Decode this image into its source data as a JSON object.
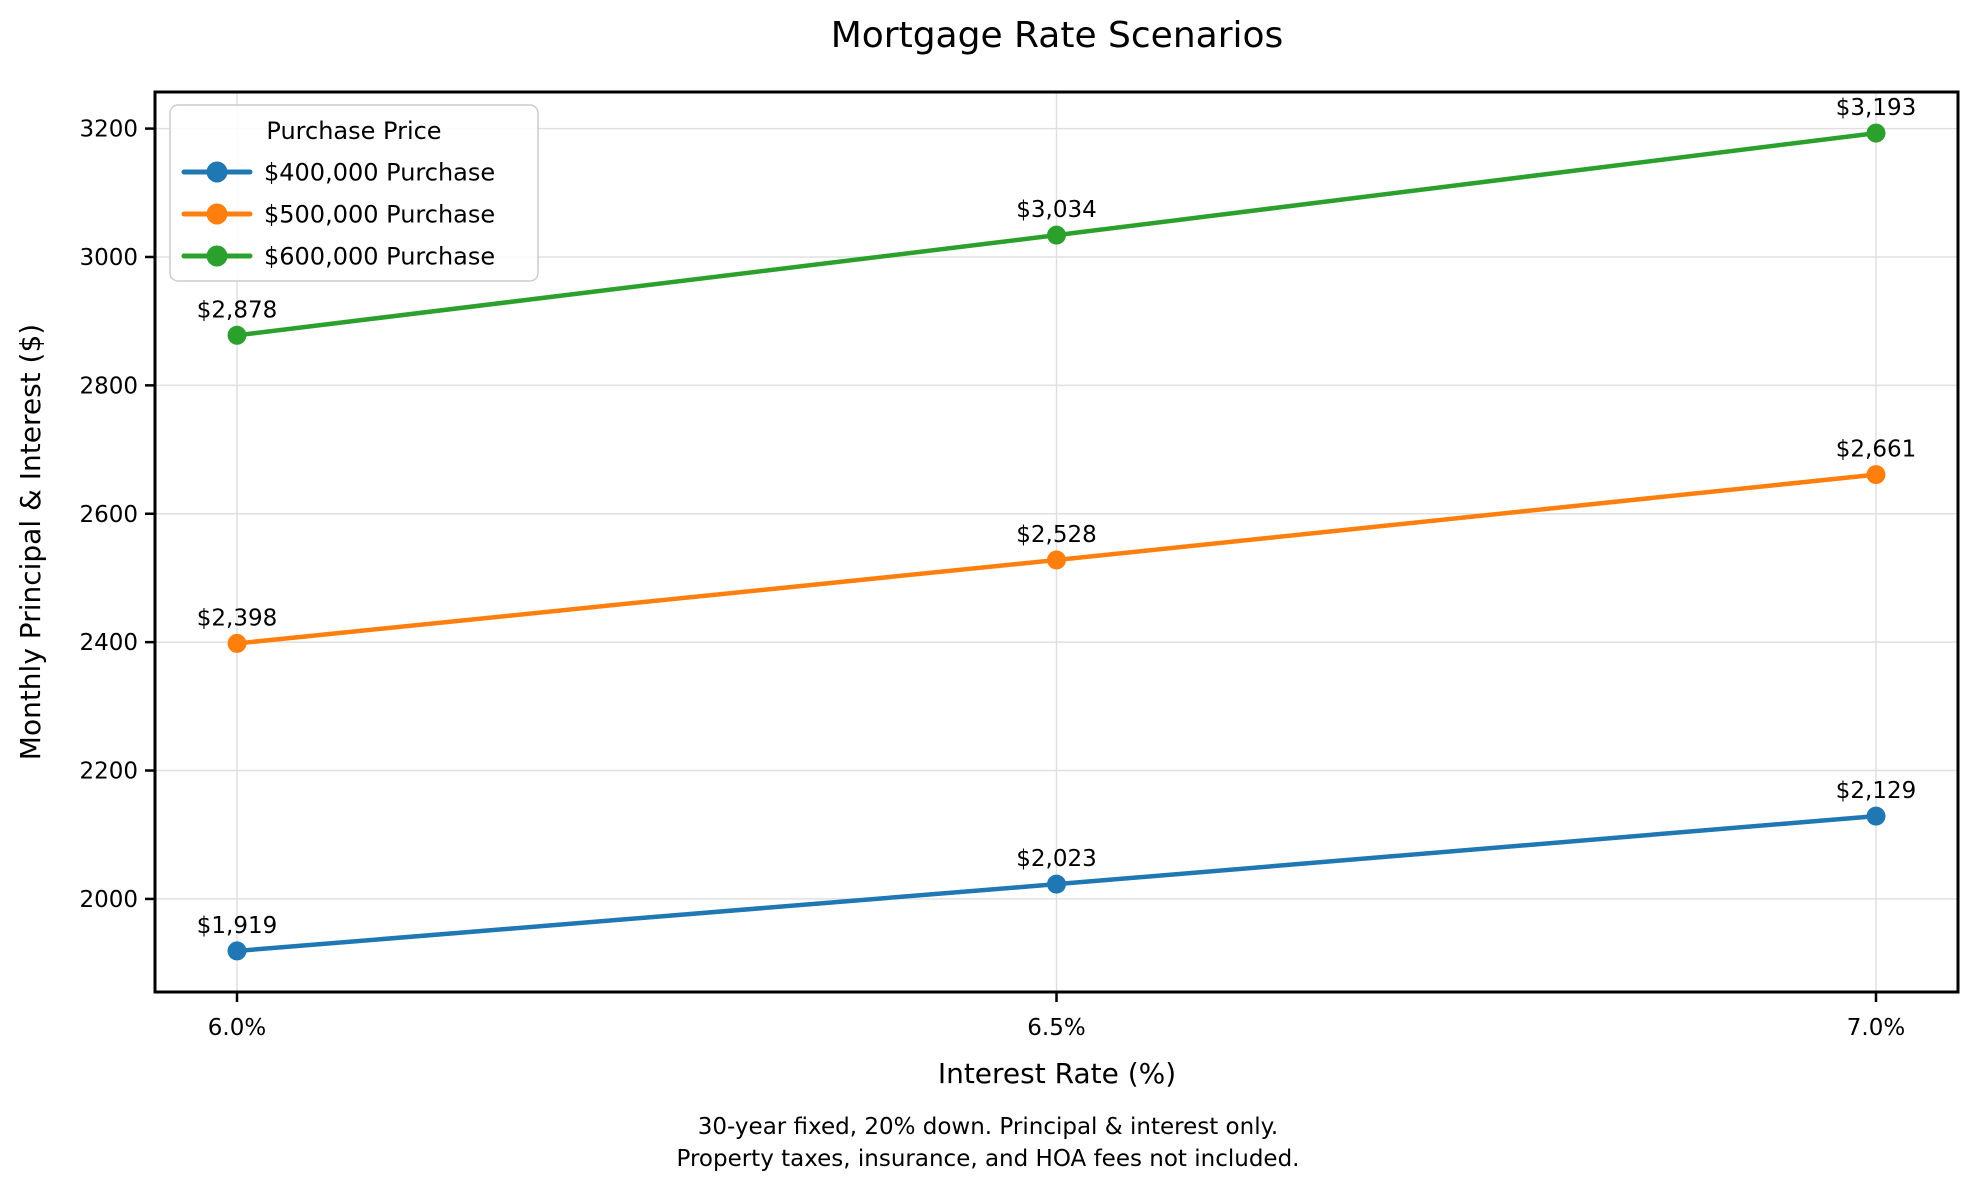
{
  "title": "Mortgage Rate Scenarios",
  "chart_data": {
    "type": "line",
    "title": "Mortgage Rate Scenarios",
    "xlabel": "Interest Rate (%)",
    "ylabel": "Monthly Principal & Interest ($)",
    "categories": [
      "6.0%",
      "6.5%",
      "7.0%"
    ],
    "x_values": [
      6.0,
      6.5,
      7.0
    ],
    "series": [
      {
        "name": "$400,000 Purchase",
        "color": "#1f77b4",
        "values": [
          1919,
          2023,
          2129
        ],
        "point_labels": [
          "$1,919",
          "$2,023",
          "$2,129"
        ]
      },
      {
        "name": "$500,000 Purchase",
        "color": "#ff7f0e",
        "values": [
          2398,
          2528,
          2661
        ],
        "point_labels": [
          "$2,398",
          "$2,528",
          "$2,661"
        ]
      },
      {
        "name": "$600,000 Purchase",
        "color": "#2ca02c",
        "values": [
          2878,
          3034,
          3193
        ],
        "point_labels": [
          "$2,878",
          "$3,034",
          "$3,193"
        ]
      }
    ],
    "legend": {
      "title": "Purchase Price",
      "position": "upper left"
    },
    "yticks": [
      2000,
      2200,
      2400,
      2600,
      2800,
      3000,
      3200
    ],
    "ylim": [
      1855,
      3257
    ],
    "grid": true
  },
  "footnote": {
    "line1": "30-year fixed, 20% down. Principal & interest only.",
    "line2": "Property taxes, insurance, and HOA fees not included."
  },
  "colors": {
    "background": "#ffffff",
    "grid": "#e0e0e0",
    "axis": "#000000",
    "text": "#000000",
    "legend_border": "#cccccc",
    "legend_fill": "rgba(255,255,255,0.85)"
  }
}
